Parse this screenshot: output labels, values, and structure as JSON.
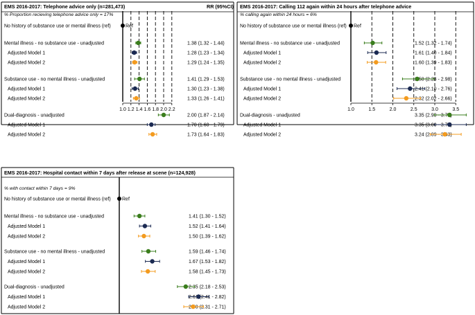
{
  "chart_data": [
    {
      "type": "forest",
      "title": "EMS 2016-2017: Telephone advice only (n=281,473)",
      "rr_header": "RR (95%CI)",
      "note": "% Proportion recieving telephone advice only = 17%",
      "reference": {
        "label": "No history of substance use or mental illness (ref)",
        "value_label": "Ref",
        "value": 1.0
      },
      "xlim": [
        1.0,
        2.2
      ],
      "ticks": [
        1.0,
        1.2,
        1.4,
        1.6,
        1.8,
        2.0,
        2.2
      ],
      "tick_labels": [
        "1.0",
        "1.2",
        "1.4",
        "1.6",
        "1.8",
        "2.0",
        "2.2"
      ],
      "groups": [
        {
          "rows": [
            {
              "label": "Mental illness - no substance use - unadjusted",
              "rr": 1.38,
              "lo": 1.32,
              "hi": 1.44,
              "ci_text": "1.38 (1.32 - 1.44)",
              "model": "unadjusted"
            },
            {
              "label": "Adjusted Model 1",
              "rr": 1.28,
              "lo": 1.23,
              "hi": 1.34,
              "ci_text": "1.28 (1.23 - 1.34)",
              "model": "m1"
            },
            {
              "label": "Adjusted Model 2",
              "rr": 1.29,
              "lo": 1.24,
              "hi": 1.35,
              "ci_text": "1.29 (1.24 - 1.35)",
              "model": "m2"
            }
          ]
        },
        {
          "rows": [
            {
              "label": "Substance use - no mental illness - unadjusted",
              "rr": 1.41,
              "lo": 1.29,
              "hi": 1.53,
              "ci_text": "1.41 (1.29 - 1.53)",
              "model": "unadjusted"
            },
            {
              "label": "Adjusted Model 1",
              "rr": 1.3,
              "lo": 1.23,
              "hi": 1.38,
              "ci_text": "1.30 (1.23 - 1.38)",
              "model": "m1"
            },
            {
              "label": "Adjusted Model 2",
              "rr": 1.33,
              "lo": 1.26,
              "hi": 1.41,
              "ci_text": "1.33 (1.26 - 1.41)",
              "model": "m2"
            }
          ]
        },
        {
          "rows": [
            {
              "label": "Dual-diagnosis - unadjusted",
              "rr": 2.0,
              "lo": 1.87,
              "hi": 2.14,
              "ci_text": "2.00 (1.87 - 2.14)",
              "model": "unadjusted"
            },
            {
              "label": "Adjusted Model 1",
              "rr": 1.7,
              "lo": 1.6,
              "hi": 1.79,
              "ci_text": "1.70 (1.60 - 1.79)",
              "model": "m1"
            },
            {
              "label": "Adjusted Model 2",
              "rr": 1.73,
              "lo": 1.64,
              "hi": 1.83,
              "ci_text": "1.73 (1.64 - 1.83)",
              "model": "m2"
            }
          ]
        }
      ]
    },
    {
      "type": "forest",
      "title": "EMS 2016-2017: Calling 112 again within 24 hours after telephone advice",
      "rr_header": "",
      "note": "% calling again within 24 hours = 6%",
      "reference": {
        "label": "No history of substance use or mental illness (ref)",
        "value_label": "Ref",
        "value": 1.0
      },
      "xlim": [
        1.0,
        3.5
      ],
      "ticks": [
        1.0,
        1.5,
        2.0,
        2.5,
        3.0,
        3.5
      ],
      "tick_labels": [
        "1.0",
        "1.5",
        "2.0",
        "2.5",
        "3.0",
        "3.5"
      ],
      "groups": [
        {
          "rows": [
            {
              "label": "Mental illness - no substance use - unadjusted",
              "rr": 1.52,
              "lo": 1.32,
              "hi": 1.74,
              "ci_text": "1.52 (1.32 - 1.74)",
              "model": "unadjusted"
            },
            {
              "label": "Adjusted Model 1",
              "rr": 1.61,
              "lo": 1.4,
              "hi": 1.84,
              "ci_text": "1.61 (1.40 - 1.84)",
              "model": "m1"
            },
            {
              "label": "Adjusted Model 2",
              "rr": 1.6,
              "lo": 1.39,
              "hi": 1.83,
              "ci_text": "1.60 (1.39 - 1.83)",
              "model": "m2"
            }
          ]
        },
        {
          "rows": [
            {
              "label": "Substance use - no mental illness - unadjusted",
              "rr": 2.58,
              "lo": 2.23,
              "hi": 2.98,
              "ci_text": "2.58 (2.23 - 2.98)",
              "model": "unadjusted"
            },
            {
              "label": "Adjusted Model 1",
              "rr": 2.41,
              "lo": 2.1,
              "hi": 2.76,
              "ci_text": "2.41 (2.10 - 2.76)",
              "model": "m1"
            },
            {
              "label": "Adjusted Model 2",
              "rr": 2.32,
              "lo": 2.02,
              "hi": 2.66,
              "ci_text": "2.32 (2.02 - 2.66)",
              "model": "m2"
            }
          ]
        },
        {
          "rows": [
            {
              "label": "Dual-diagnosis - unadjusted",
              "rr": 3.35,
              "lo": 2.99,
              "hi": 3.75,
              "ci_text": "3.35 (2.99 - 3.75)",
              "model": "unadjusted"
            },
            {
              "label": "Adjusted Model 1",
              "rr": 3.35,
              "lo": 3.0,
              "hi": 3.75,
              "ci_text": "3.35 (3.00 - 3.75)",
              "model": "m1"
            },
            {
              "label": "Adjusted Model 2",
              "rr": 3.24,
              "lo": 2.89,
              "hi": 3.63,
              "ci_text": "3.24 (2.89 - 3.63)",
              "model": "m2"
            }
          ]
        }
      ]
    },
    {
      "type": "forest",
      "title": "EMS 2016-2017: Hospital contact within 7 days after release at scene (n=124,928)",
      "rr_header": "",
      "note": "% with contact within 7 days = 9%",
      "reference": {
        "label": "No history of substance use or mental illness (ref)",
        "value_label": "Ref",
        "value": 1.0
      },
      "xlim": [
        1.0,
        2.9
      ],
      "ticks": [],
      "tick_labels": [],
      "groups": [
        {
          "rows": [
            {
              "label": "Mental illness - no substance use - unadjusted",
              "rr": 1.41,
              "lo": 1.3,
              "hi": 1.52,
              "ci_text": "1.41 (1.30 - 1.52)",
              "model": "unadjusted"
            },
            {
              "label": "Adjusted Model 1",
              "rr": 1.52,
              "lo": 1.41,
              "hi": 1.64,
              "ci_text": "1.52 (1.41 - 1.64)",
              "model": "m1"
            },
            {
              "label": "Adjusted Model 2",
              "rr": 1.5,
              "lo": 1.39,
              "hi": 1.62,
              "ci_text": "1.50 (1.39 - 1.62)",
              "model": "m2"
            }
          ]
        },
        {
          "rows": [
            {
              "label": "Substance use - no mental illness - unadjusted",
              "rr": 1.59,
              "lo": 1.46,
              "hi": 1.74,
              "ci_text": "1.59 (1.46 - 1.74)",
              "model": "unadjusted"
            },
            {
              "label": "Adjusted Model 1",
              "rr": 1.67,
              "lo": 1.53,
              "hi": 1.82,
              "ci_text": "1.67 (1.53 - 1.82)",
              "model": "m1"
            },
            {
              "label": "Adjusted Model 2",
              "rr": 1.58,
              "lo": 1.45,
              "hi": 1.73,
              "ci_text": "1.58 (1.45 - 1.73)",
              "model": "m2"
            }
          ]
        },
        {
          "rows": [
            {
              "label": "Dual-diagnosis - unadjusted",
              "rr": 2.35,
              "lo": 2.18,
              "hi": 2.53,
              "ci_text": "2.35 (2.18 - 2.53)",
              "model": "unadjusted"
            },
            {
              "label": "Adjusted Model 1",
              "rr": 2.61,
              "lo": 2.41,
              "hi": 2.82,
              "ci_text": "2.61 (2.41 - 2.82)",
              "model": "m1"
            },
            {
              "label": "Adjusted Model 2",
              "rr": 2.5,
              "lo": 2.31,
              "hi": 2.71,
              "ci_text": "2.50 (2.31 - 2.71)",
              "model": "m2"
            }
          ]
        }
      ]
    }
  ],
  "colors": {
    "unadjusted": "#3a7d1c",
    "m1": "#1b2a52",
    "m2": "#f39b1f",
    "reference": "#000000",
    "grid": "#000000",
    "frame": "#000000"
  }
}
